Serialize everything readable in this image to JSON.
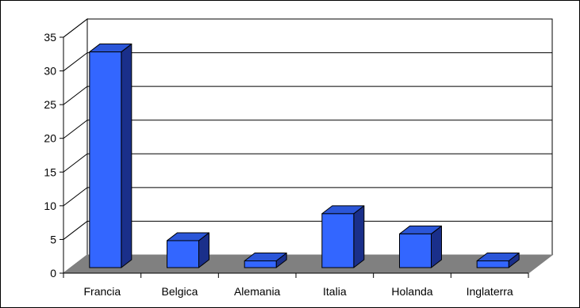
{
  "chart_data": {
    "type": "bar",
    "title": "",
    "xlabel": "",
    "ylabel": "",
    "categories": [
      "Francia",
      "Belgica",
      "Alemania",
      "Italia",
      "Holanda",
      "Inglaterra"
    ],
    "values": [
      32,
      4,
      1,
      8,
      5,
      1
    ],
    "ylim": [
      0,
      35
    ],
    "y_ticks": [
      0,
      5,
      10,
      15,
      20,
      25,
      30,
      35
    ],
    "grid": true,
    "legend": "none",
    "style": "3d-column",
    "colors": {
      "bar_front": "#3366FF",
      "bar_top": "#2B56D8",
      "bar_side": "#1A2F8A",
      "floor": "#808080",
      "wall": "#FFFFFF",
      "gridline": "#000000"
    }
  }
}
